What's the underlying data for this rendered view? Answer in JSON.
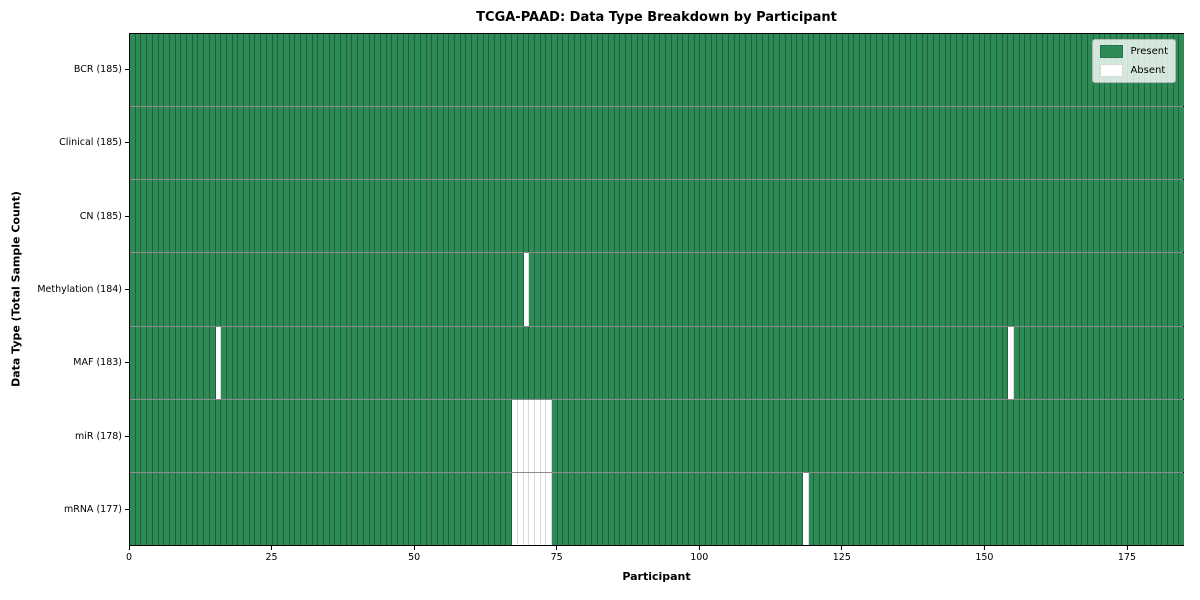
{
  "title": "TCGA-PAAD: Data Type Breakdown by Participant",
  "chart_data": {
    "type": "heatmap",
    "title": "TCGA-PAAD: Data Type Breakdown by Participant",
    "xlabel": "Participant",
    "ylabel": "Data Type (Total Sample Count)",
    "n_participants": 185,
    "xlim": [
      0,
      185
    ],
    "x_ticks": [
      0,
      25,
      50,
      75,
      100,
      125,
      150,
      175
    ],
    "grid": "cell-edges",
    "colors": {
      "present": "#2e8b57",
      "absent": "#ffffff",
      "cell_edge": "rgba(0,0,0,0.30)",
      "row_edge": "rgba(0,0,0,0.45)",
      "figure_background": "#ffffff",
      "text": "#000000"
    },
    "legend": {
      "position": "upper right",
      "entries": [
        {
          "label": "Present",
          "color": "#2e8b57"
        },
        {
          "label": "Absent",
          "color": "#ffffff"
        }
      ]
    },
    "rows": [
      {
        "data_type": "BCR",
        "label": "BCR (185)",
        "total_samples": 185,
        "absent_participants": []
      },
      {
        "data_type": "Clinical",
        "label": "Clinical (185)",
        "total_samples": 185,
        "absent_participants": []
      },
      {
        "data_type": "CN",
        "label": "CN (185)",
        "total_samples": 185,
        "absent_participants": []
      },
      {
        "data_type": "Methylation",
        "label": "Methylation (184)",
        "total_samples": 184,
        "absent_participants": [
          69
        ]
      },
      {
        "data_type": "MAF",
        "label": "MAF (183)",
        "total_samples": 183,
        "absent_participants": [
          15,
          154
        ]
      },
      {
        "data_type": "miR",
        "label": "miR (178)",
        "total_samples": 178,
        "absent_participants": [
          67,
          68,
          69,
          70,
          71,
          72,
          73
        ]
      },
      {
        "data_type": "mRNA",
        "label": "mRNA (177)",
        "total_samples": 177,
        "absent_participants": [
          67,
          68,
          69,
          70,
          71,
          72,
          73,
          118
        ]
      }
    ]
  }
}
